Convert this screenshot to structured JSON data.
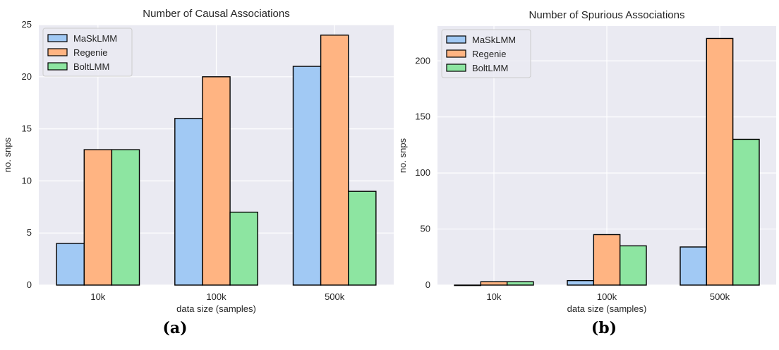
{
  "colors": {
    "MaSkLMM": "#a1c9f4",
    "Regenie": "#ffb482",
    "BoltLMM": "#8de5a1",
    "background": "#eaeaf2",
    "grid": "#ffffff"
  },
  "chart_data": [
    {
      "type": "bar",
      "panel": "(a)",
      "title": "Number of Causal Associations",
      "xlabel": "data size (samples)",
      "ylabel": "no. snps",
      "categories": [
        "10k",
        "100k",
        "500k"
      ],
      "series": [
        {
          "name": "MaSkLMM",
          "values": [
            4,
            16,
            21
          ]
        },
        {
          "name": "Regenie",
          "values": [
            13,
            20,
            24
          ]
        },
        {
          "name": "BoltLMM",
          "values": [
            13,
            7,
            9
          ]
        }
      ],
      "ylim": [
        0,
        25
      ],
      "yticks": [
        "0",
        "5",
        "10",
        "15",
        "20",
        "25"
      ],
      "grid": true,
      "legend": "top-left"
    },
    {
      "type": "bar",
      "panel": "(b)",
      "title": "Number of Spurious Associations",
      "xlabel": "data size (samples)",
      "ylabel": "no. snps",
      "categories": [
        "10k",
        "100k",
        "500k"
      ],
      "series": [
        {
          "name": "MaSkLMM",
          "values": [
            0,
            4,
            34
          ]
        },
        {
          "name": "Regenie",
          "values": [
            3,
            45,
            220
          ]
        },
        {
          "name": "BoltLMM",
          "values": [
            3,
            35,
            130
          ]
        }
      ],
      "ylim": [
        0,
        231
      ],
      "yticks": [
        "0",
        "50",
        "100",
        "150",
        "200"
      ],
      "grid": true,
      "legend": "top-left"
    }
  ]
}
